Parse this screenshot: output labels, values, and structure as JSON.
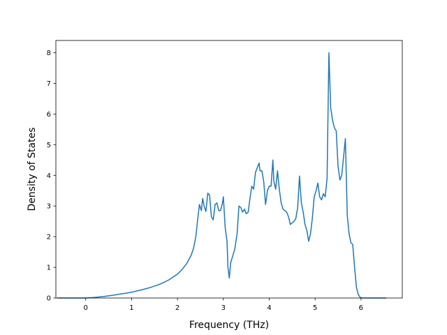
{
  "chart_data": {
    "type": "line",
    "title": "",
    "xlabel": "Frequency (THz)",
    "ylabel": "Density of States",
    "xlim": [
      -0.65,
      6.9
    ],
    "ylim": [
      0,
      8.4
    ],
    "xticks": [
      0,
      1,
      2,
      3,
      4,
      5,
      6
    ],
    "yticks": [
      0,
      1,
      2,
      3,
      4,
      5,
      6,
      7,
      8
    ],
    "xtick_labels": [
      "0",
      "1",
      "2",
      "3",
      "4",
      "5",
      "6"
    ],
    "ytick_labels": [
      "0",
      "1",
      "2",
      "3",
      "4",
      "5",
      "6",
      "7",
      "8"
    ],
    "grid": false,
    "legend": false,
    "series": [
      {
        "color": "#1f77b4",
        "x": [
          -0.62,
          -0.3,
          0.0,
          0.2,
          0.4,
          0.6,
          0.8,
          1.0,
          1.2,
          1.4,
          1.6,
          1.8,
          2.0,
          2.1,
          2.2,
          2.3,
          2.35,
          2.4,
          2.45,
          2.48,
          2.52,
          2.55,
          2.58,
          2.62,
          2.66,
          2.7,
          2.74,
          2.78,
          2.82,
          2.86,
          2.9,
          2.94,
          2.98,
          3.0,
          3.04,
          3.08,
          3.1,
          3.13,
          3.16,
          3.2,
          3.25,
          3.3,
          3.34,
          3.38,
          3.42,
          3.46,
          3.5,
          3.54,
          3.58,
          3.62,
          3.66,
          3.7,
          3.74,
          3.78,
          3.8,
          3.84,
          3.88,
          3.92,
          3.96,
          4.0,
          4.04,
          4.08,
          4.1,
          4.14,
          4.18,
          4.22,
          4.26,
          4.3,
          4.34,
          4.38,
          4.42,
          4.46,
          4.5,
          4.54,
          4.58,
          4.62,
          4.66,
          4.7,
          4.74,
          4.78,
          4.82,
          4.86,
          4.9,
          4.94,
          4.98,
          5.02,
          5.06,
          5.1,
          5.14,
          5.18,
          5.22,
          5.26,
          5.3,
          5.34,
          5.38,
          5.42,
          5.46,
          5.5,
          5.54,
          5.58,
          5.62,
          5.66,
          5.7,
          5.74,
          5.78,
          5.82,
          5.86,
          5.9,
          5.94,
          5.98,
          6.02,
          6.3,
          6.55
        ],
        "y": [
          0.0,
          0.0,
          0.0,
          0.02,
          0.05,
          0.09,
          0.14,
          0.19,
          0.26,
          0.34,
          0.44,
          0.58,
          0.78,
          0.93,
          1.12,
          1.4,
          1.62,
          2.0,
          2.7,
          3.05,
          2.85,
          3.25,
          3.0,
          2.82,
          3.42,
          3.35,
          2.65,
          2.55,
          3.05,
          3.1,
          2.85,
          2.85,
          3.1,
          3.3,
          2.3,
          1.85,
          1.0,
          0.65,
          1.15,
          1.35,
          1.6,
          2.1,
          3.0,
          2.95,
          2.8,
          2.9,
          2.75,
          2.8,
          3.25,
          3.65,
          3.55,
          4.1,
          4.25,
          4.4,
          4.15,
          4.15,
          3.8,
          3.05,
          3.5,
          3.65,
          3.65,
          4.5,
          3.8,
          3.55,
          4.15,
          3.55,
          3.1,
          2.9,
          2.85,
          2.8,
          2.65,
          2.4,
          2.45,
          2.5,
          2.6,
          2.95,
          3.98,
          3.1,
          2.8,
          2.4,
          2.2,
          1.85,
          2.1,
          2.6,
          3.3,
          3.5,
          3.75,
          3.3,
          3.2,
          3.4,
          3.3,
          3.9,
          8.0,
          6.2,
          5.8,
          5.55,
          5.45,
          4.3,
          3.85,
          4.0,
          4.6,
          5.2,
          2.7,
          2.1,
          1.8,
          1.75,
          1.0,
          0.35,
          0.12,
          0.02,
          0.0,
          0.0,
          0.0
        ]
      }
    ]
  }
}
